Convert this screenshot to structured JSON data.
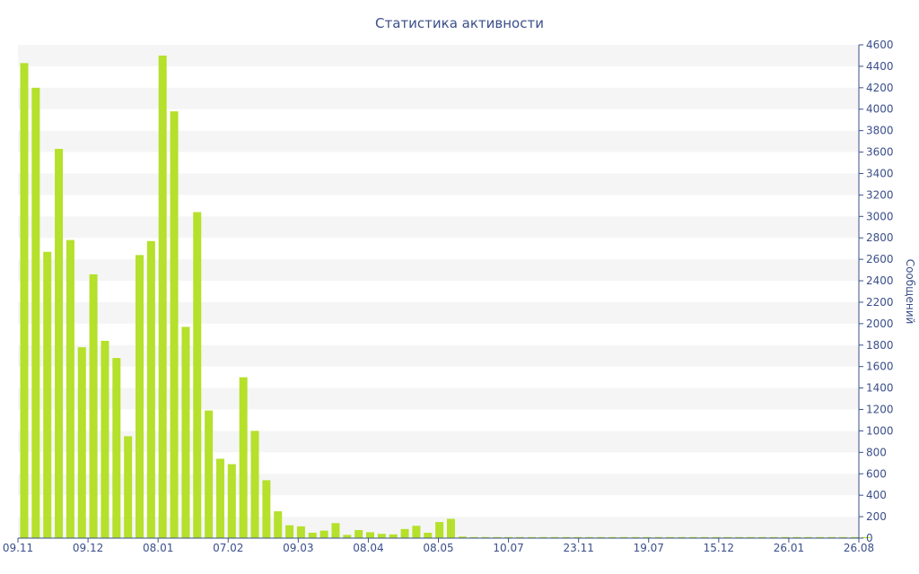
{
  "chart_data": {
    "type": "bar",
    "title": "Статистика активности",
    "xlabel": "",
    "ylabel": "Сообщений",
    "ylim": [
      0,
      4600
    ],
    "y_ticks": [
      0,
      200,
      400,
      600,
      800,
      1000,
      1200,
      1400,
      1600,
      1800,
      2000,
      2200,
      2400,
      2600,
      2800,
      3000,
      3200,
      3400,
      3600,
      3800,
      4000,
      4200,
      4400,
      4600
    ],
    "x_tick_labels": [
      "09.11",
      "09.12",
      "08.01",
      "07.02",
      "09.03",
      "08.04",
      "08.05",
      "10.07",
      "23.11",
      "19.07",
      "15.12",
      "26.01",
      "26.08"
    ],
    "y_axis_position": "right",
    "grid": "alternating horizontal bands",
    "legend": "none",
    "values": [
      4430,
      4200,
      2670,
      3630,
      2780,
      1780,
      2460,
      1840,
      1680,
      950,
      2640,
      2770,
      4500,
      3980,
      1970,
      3040,
      1190,
      740,
      690,
      1500,
      1000,
      540,
      250,
      120,
      110,
      50,
      70,
      140,
      30,
      75,
      55,
      40,
      35,
      85,
      115,
      50,
      150,
      180,
      15,
      10,
      10,
      10,
      10,
      10,
      10,
      10,
      10,
      10,
      10,
      10,
      10,
      10,
      10,
      10,
      10,
      10,
      10,
      10,
      10,
      10,
      10,
      10,
      10,
      10,
      10,
      10,
      10,
      10,
      10,
      10,
      10,
      10,
      10,
      10
    ]
  },
  "colors": {
    "bar": "#b5e02b",
    "axis_text": "#3b4f8a",
    "axis_line": "#3b4f8a",
    "band": "#f5f5f5"
  }
}
